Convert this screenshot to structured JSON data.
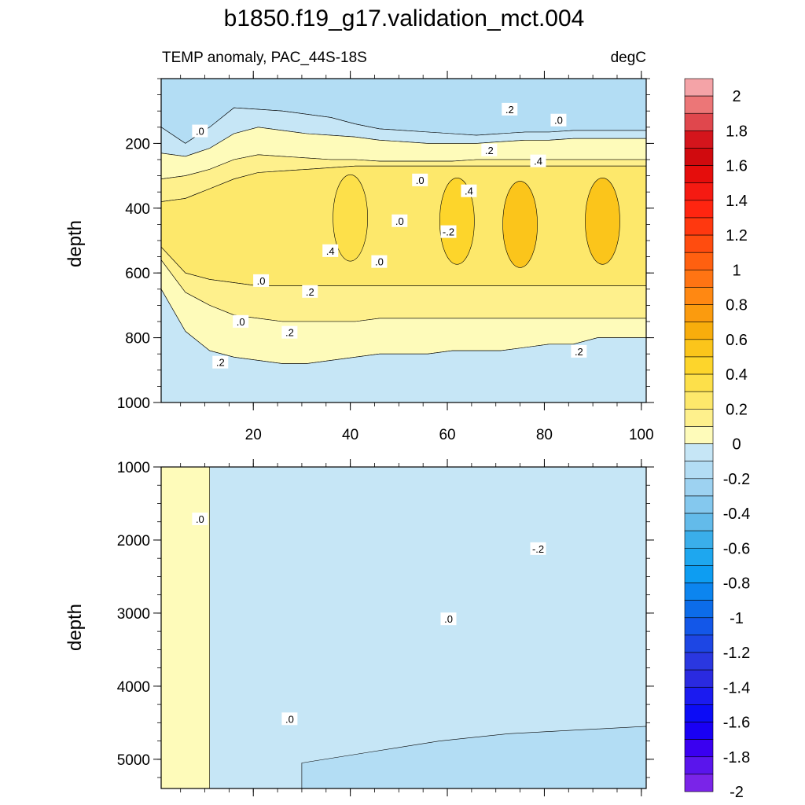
{
  "figure": {
    "title": "b1850.f19_g17.validation_mct.004"
  },
  "colors": {
    "background": "#ffffff",
    "frame": "#000000",
    "contour_line": "#000000"
  },
  "chart_data": [
    {
      "type": "heatmap",
      "panel": "upper",
      "subtitle_left": "TEMP anomaly, PAC_44S-18S",
      "subtitle_right": "degC",
      "xlabel": "",
      "ylabel": "depth",
      "xlim": [
        1,
        101
      ],
      "ylim": [
        1000,
        0
      ],
      "y_tick_values": [
        200,
        400,
        600,
        800,
        1000
      ],
      "y_tick_labels": [
        "200",
        "400",
        "600",
        "800",
        "1000"
      ],
      "x_tick_values": [
        20,
        40,
        60,
        80,
        100
      ],
      "x_tick_labels": [
        "20",
        "40",
        "60",
        "80",
        "100"
      ],
      "contour_interval": 0.1,
      "contour_labels": [
        ".0",
        "-.2",
        ".2",
        ".4",
        ".0",
        ".2",
        ".4",
        ".2",
        ".0",
        ".0",
        ".0",
        ".2",
        ".4",
        ".2",
        ".0",
        ".0",
        ".2"
      ],
      "bands": [
        {
          "range": [
            -0.2,
            -0.1
          ],
          "x": [
            1,
            101
          ],
          "y_top": [
            0,
            0,
            0,
            0,
            0,
            0,
            0,
            0,
            0,
            0,
            0,
            0,
            0,
            0,
            0,
            0,
            0,
            0,
            0,
            0,
            0
          ],
          "y_bottom": [
            150,
            200,
            150,
            90,
            95,
            100,
            110,
            120,
            140,
            155,
            160,
            165,
            170,
            175,
            170,
            165,
            165,
            160,
            160,
            160,
            160
          ]
        },
        {
          "range": [
            -0.1,
            0.0
          ],
          "x": [
            1,
            101
          ],
          "y_top": [
            150,
            200,
            150,
            90,
            95,
            100,
            110,
            120,
            140,
            155,
            160,
            165,
            170,
            175,
            170,
            165,
            165,
            160,
            160,
            160,
            160
          ],
          "y_bottom": [
            230,
            240,
            215,
            170,
            150,
            160,
            170,
            175,
            180,
            190,
            195,
            200,
            200,
            200,
            195,
            190,
            190,
            185,
            185,
            185,
            185
          ]
        },
        {
          "range": [
            0.0,
            0.1
          ],
          "x": [
            1,
            101
          ],
          "y_top": [
            230,
            240,
            215,
            170,
            150,
            160,
            170,
            175,
            180,
            190,
            195,
            200,
            200,
            200,
            195,
            190,
            190,
            185,
            185,
            185,
            185
          ],
          "y_bottom": [
            310,
            300,
            280,
            250,
            235,
            240,
            245,
            250,
            250,
            255,
            255,
            255,
            255,
            250,
            250,
            250,
            250,
            250,
            250,
            250,
            250
          ]
        },
        {
          "range": [
            0.1,
            0.2
          ],
          "x": [
            1,
            101
          ],
          "y_top": [
            310,
            300,
            280,
            250,
            235,
            240,
            245,
            250,
            250,
            255,
            255,
            255,
            255,
            250,
            250,
            250,
            250,
            250,
            250,
            250,
            250
          ],
          "y_bottom": [
            380,
            370,
            340,
            310,
            290,
            285,
            280,
            275,
            270,
            270,
            270,
            270,
            270,
            270,
            270,
            270,
            270,
            270,
            270,
            270,
            270
          ]
        },
        {
          "range": [
            0.2,
            0.3
          ],
          "x": [
            1,
            101
          ],
          "y_top": [
            380,
            370,
            340,
            310,
            290,
            285,
            280,
            275,
            270,
            270,
            270,
            270,
            270,
            270,
            270,
            270,
            270,
            270,
            270,
            270,
            270
          ],
          "y_bottom": [
            520,
            600,
            620,
            630,
            640,
            640,
            640,
            640,
            640,
            640,
            640,
            640,
            640,
            640,
            640,
            640,
            640,
            640,
            640,
            640,
            640
          ]
        },
        {
          "range": [
            0.1,
            0.2
          ],
          "x": [
            1,
            101
          ],
          "y_top": [
            520,
            600,
            620,
            630,
            640,
            640,
            640,
            640,
            640,
            640,
            640,
            640,
            640,
            640,
            640,
            640,
            640,
            640,
            640,
            640,
            640
          ],
          "y_bottom": [
            560,
            660,
            700,
            730,
            740,
            750,
            750,
            750,
            750,
            740,
            740,
            740,
            740,
            740,
            740,
            740,
            740,
            740,
            740,
            740,
            740
          ]
        },
        {
          "range": [
            0.0,
            0.1
          ],
          "x": [
            1,
            101
          ],
          "y_top": [
            560,
            660,
            700,
            730,
            740,
            750,
            750,
            750,
            750,
            740,
            740,
            740,
            740,
            740,
            740,
            740,
            740,
            740,
            740,
            740,
            740
          ],
          "y_bottom": [
            650,
            780,
            840,
            860,
            870,
            880,
            880,
            870,
            860,
            850,
            850,
            850,
            840,
            840,
            840,
            830,
            820,
            820,
            800,
            800,
            800
          ]
        },
        {
          "range": [
            -0.1,
            0.0
          ],
          "x": [
            1,
            101
          ],
          "y_top": [
            650,
            780,
            840,
            860,
            870,
            880,
            880,
            870,
            860,
            850,
            850,
            850,
            840,
            840,
            840,
            830,
            820,
            820,
            800,
            800,
            800
          ],
          "y_bottom": [
            1000,
            1000,
            1000,
            1000,
            1000,
            1000,
            1000,
            1000,
            1000,
            1000,
            1000,
            1000,
            1000,
            1000,
            1000,
            1000,
            1000,
            1000,
            1000,
            1000,
            1000
          ]
        }
      ],
      "core_max": [
        {
          "x": 40,
          "y": 430,
          "value": 0.4
        },
        {
          "x": 62,
          "y": 440,
          "value": 0.5
        },
        {
          "x": 75,
          "y": 450,
          "value": 0.6
        },
        {
          "x": 92,
          "y": 440,
          "value": 0.6
        }
      ]
    },
    {
      "type": "heatmap",
      "panel": "lower",
      "xlabel": "",
      "ylabel": "depth",
      "xlim": [
        1,
        101
      ],
      "ylim": [
        5400,
        1000
      ],
      "y_tick_values": [
        1000,
        2000,
        3000,
        4000,
        5000
      ],
      "y_tick_labels": [
        "1000",
        "2000",
        "3000",
        "4000",
        "5000"
      ],
      "contour_interval": 0.1,
      "contour_labels": [
        ".0",
        ".0",
        ".0",
        "-.2"
      ],
      "bands": [
        {
          "range": [
            -0.1,
            0.0
          ],
          "x": [
            1,
            101
          ],
          "y_top": [
            1000,
            1000,
            1000,
            1000,
            1000,
            1000,
            1000,
            1000,
            1000,
            1000,
            1000,
            1000,
            1000,
            1000,
            1000,
            1000,
            1000,
            1000,
            1000,
            1000,
            1000
          ],
          "y_bottom": [
            5400,
            5400,
            5400,
            5400,
            5400,
            5400,
            5400,
            5400,
            5400,
            5400,
            5400,
            5400,
            5400,
            5400,
            5400,
            5400,
            5400,
            5400,
            5400,
            5400,
            5400
          ]
        },
        {
          "range": [
            0.0,
            0.1
          ],
          "x": [
            1,
            11
          ],
          "y_top": [
            1000,
            1000,
            1000
          ],
          "y_bottom": [
            5400,
            5400,
            5400
          ]
        },
        {
          "range": [
            -0.2,
            -0.1
          ],
          "x": [
            30,
            101
          ],
          "y_top": [
            5050,
            4900,
            4750,
            4650,
            4600,
            4550
          ],
          "y_bottom": [
            5400,
            5400,
            5400,
            5400,
            5400,
            5400
          ]
        }
      ]
    }
  ],
  "colorbar": {
    "labels": [
      "2",
      "1.8",
      "1.6",
      "1.4",
      "1.2",
      "1",
      "0.8",
      "0.6",
      "0.4",
      "0.2",
      "0",
      "-0.2",
      "-0.4",
      "-0.6",
      "-0.8",
      "-1",
      "-1.2",
      "-1.4",
      "-1.6",
      "-1.8",
      "-2"
    ],
    "levels": [
      2.1,
      2.0,
      1.9,
      1.8,
      1.7,
      1.6,
      1.5,
      1.4,
      1.3,
      1.2,
      1.1,
      1.0,
      0.9,
      0.8,
      0.7,
      0.6,
      0.5,
      0.4,
      0.3,
      0.2,
      0.1,
      0.0,
      -0.1,
      -0.2,
      -0.3,
      -0.4,
      -0.5,
      -0.6,
      -0.7,
      -0.8,
      -0.9,
      -1.0,
      -1.1,
      -1.2,
      -1.3,
      -1.4,
      -1.5,
      -1.6,
      -1.7,
      -1.8,
      -1.9,
      -2.0
    ],
    "colors": [
      "#f4a3a7",
      "#ec7677",
      "#e0474d",
      "#d4151c",
      "#d00a0e",
      "#e50d0c",
      "#f51a12",
      "#ff2510",
      "#ff380f",
      "#ff4c0f",
      "#ff6010",
      "#ff7413",
      "#ff8812",
      "#fb9b0e",
      "#f8ad0c",
      "#fbc51b",
      "#fdd52b",
      "#fde04a",
      "#fde86b",
      "#fef08c",
      "#fefbba",
      "#c6e6f6",
      "#b3ddf4",
      "#9dd2f1",
      "#84c8ee",
      "#63bbea",
      "#3aaeea",
      "#1ea7ef",
      "#0d9df2",
      "#0c85ef",
      "#0c6ce9",
      "#1357e8",
      "#1d46e4",
      "#2a37e0",
      "#2a2ae0",
      "#1b1bf0",
      "#0c0cf6",
      "#1900f4",
      "#3a00f0",
      "#5a15ec",
      "#7a24e8"
    ]
  }
}
